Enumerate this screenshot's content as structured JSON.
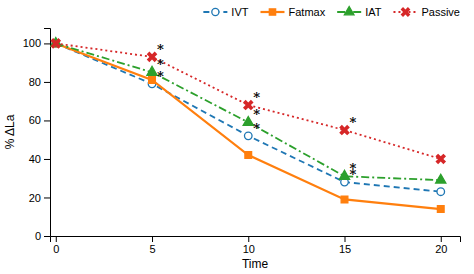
{
  "chart_data": {
    "type": "line",
    "x": [
      0,
      5,
      10,
      15,
      20
    ],
    "series": [
      {
        "name": "IVT",
        "marker": "circle",
        "line_style": "dashed",
        "values": [
          100,
          79,
          52,
          28,
          23
        ]
      },
      {
        "name": "Fatmax",
        "marker": "square",
        "line_style": "solid",
        "values": [
          100,
          81,
          42,
          19,
          14
        ]
      },
      {
        "name": "IAT",
        "marker": "triangle",
        "line_style": "dashdot",
        "values": [
          100,
          85,
          59,
          31,
          29
        ]
      },
      {
        "name": "Passive",
        "marker": "x",
        "line_style": "dotted",
        "values": [
          100,
          93,
          68,
          55,
          40
        ]
      }
    ],
    "xlabel": "Time",
    "ylabel": "% ΔLa",
    "xlim": [
      -0.3,
      21
    ],
    "ylim": [
      0,
      108
    ],
    "xticks": [
      0,
      5,
      10,
      15,
      20
    ],
    "yticks": [
      0,
      20,
      40,
      60,
      80,
      100
    ],
    "grid": false,
    "legend": "top",
    "annotations": [
      {
        "text": "*",
        "x": 5,
        "y": 79
      },
      {
        "text": "*",
        "x": 5,
        "y": 85
      },
      {
        "text": "*",
        "x": 5,
        "y": 93
      },
      {
        "text": "*",
        "x": 10,
        "y": 52
      },
      {
        "text": "*",
        "x": 10,
        "y": 59
      },
      {
        "text": "*",
        "x": 10,
        "y": 68
      },
      {
        "text": "*",
        "x": 15,
        "y": 28
      },
      {
        "text": "*",
        "x": 15,
        "y": 31
      },
      {
        "text": "*",
        "x": 15,
        "y": 55
      }
    ]
  }
}
